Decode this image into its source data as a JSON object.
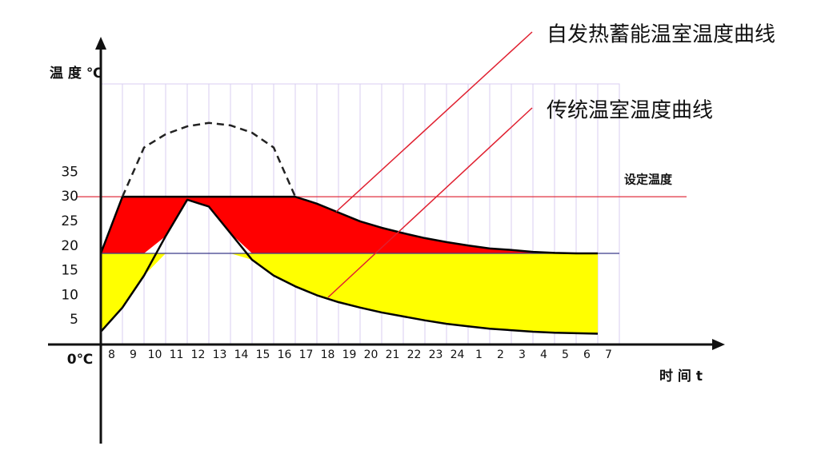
{
  "chart_data": {
    "type": "line",
    "y_label": "温 度 ℃",
    "x_label": "时 间 t",
    "categories": [
      "8",
      "9",
      "10",
      "11",
      "12",
      "13",
      "14",
      "15",
      "16",
      "17",
      "18",
      "19",
      "20",
      "21",
      "22",
      "23",
      "24",
      "1",
      "2",
      "3",
      "4",
      "5",
      "6",
      "7"
    ],
    "ylim": [
      0,
      62
    ],
    "yticks": [
      {
        "value": 0,
        "label": "0℃"
      },
      5,
      10,
      15,
      20,
      25,
      30,
      35
    ],
    "series": [
      {
        "name": "自发热蓄能温室温度曲线",
        "color": "#000000",
        "values": [
          18.5,
          30,
          30,
          30,
          30,
          30,
          30,
          30,
          30,
          30,
          28.6,
          26.8,
          25,
          23.7,
          22.6,
          21.6,
          20.8,
          20.1,
          19.5,
          19.2,
          18.8,
          18.6,
          18.5,
          18.5
        ]
      },
      {
        "name": "传统温室温度曲线",
        "color": "#000000",
        "values": [
          2.6,
          7.5,
          14,
          22,
          29.4,
          28,
          22.6,
          17.2,
          14,
          11.8,
          10,
          8.6,
          7.5,
          6.5,
          5.7,
          4.9,
          4.2,
          3.7,
          3.2,
          2.9,
          2.6,
          2.4,
          2.3,
          2.2
        ]
      },
      {
        "color": "#222222",
        "dashed": true,
        "values": [
          null,
          30,
          40,
          42.7,
          44.3,
          45,
          44.5,
          43,
          40,
          30,
          null,
          null,
          null,
          null,
          null,
          null,
          null,
          null,
          null,
          null,
          null,
          null,
          null,
          null
        ]
      }
    ],
    "reference_lines": [
      {
        "value": 30,
        "label": "设定温度",
        "color": "#e03040"
      },
      {
        "value": 18.5,
        "color": "#3a3a8a"
      }
    ],
    "fill_colors": {
      "above": "#ff0000",
      "below": "#ffff00"
    }
  }
}
